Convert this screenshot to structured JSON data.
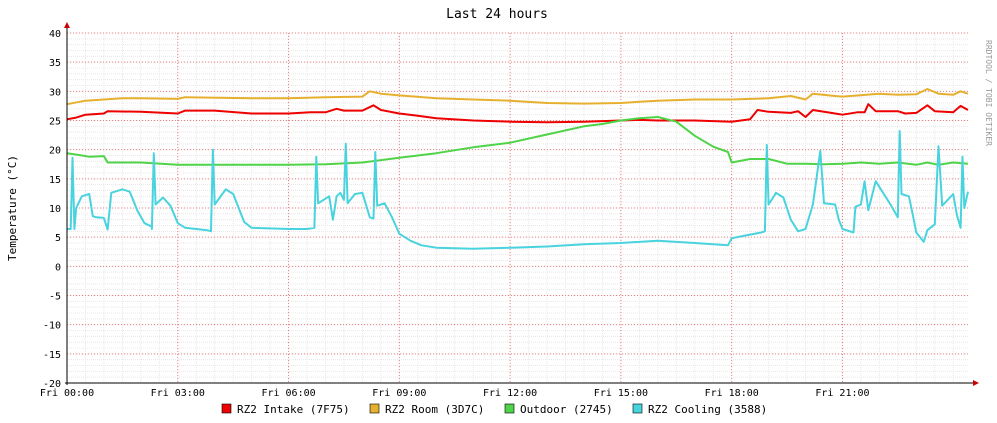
{
  "chart_data": {
    "type": "line",
    "title": "Last 24 hours",
    "ylabel": "Temperature (°C)",
    "xlabel": "",
    "watermark": "RRDTOOL / TOBI OETIKER",
    "ylim": [
      -20,
      40
    ],
    "yticks": [
      -20,
      -15,
      -10,
      -5,
      0,
      5,
      10,
      15,
      20,
      25,
      30,
      35,
      40
    ],
    "xlim": [
      0,
      24.4
    ],
    "xticks": [
      {
        "value": 0,
        "label": "Fri 00:00"
      },
      {
        "value": 3,
        "label": "Fri 03:00"
      },
      {
        "value": 6,
        "label": "Fri 06:00"
      },
      {
        "value": 9,
        "label": "Fri 09:00"
      },
      {
        "value": 12,
        "label": "Fri 12:00"
      },
      {
        "value": 15,
        "label": "Fri 15:00"
      },
      {
        "value": 18,
        "label": "Fri 18:00"
      },
      {
        "value": 21,
        "label": "Fri 21:00"
      }
    ],
    "grid": true,
    "legend_position": "bottom",
    "colors": {
      "background": "#ffffff",
      "major_grid": "#f08080",
      "minor_grid": "#e8e8e8",
      "axis": "#000000",
      "arrow": "#cc0000"
    },
    "series": [
      {
        "name": "RZ2 Intake (7F75)",
        "color": "#ee0000",
        "points": [
          [
            0,
            25.2
          ],
          [
            0.25,
            25.5
          ],
          [
            0.5,
            26.0
          ],
          [
            1.0,
            26.2
          ],
          [
            1.1,
            26.6
          ],
          [
            2.0,
            26.5
          ],
          [
            3.0,
            26.2
          ],
          [
            3.2,
            26.7
          ],
          [
            4.0,
            26.7
          ],
          [
            5.0,
            26.2
          ],
          [
            6.0,
            26.2
          ],
          [
            6.6,
            26.4
          ],
          [
            7.0,
            26.4
          ],
          [
            7.3,
            27.0
          ],
          [
            7.5,
            26.7
          ],
          [
            8.0,
            26.7
          ],
          [
            8.3,
            27.6
          ],
          [
            8.5,
            26.8
          ],
          [
            9.0,
            26.2
          ],
          [
            9.5,
            25.8
          ],
          [
            10.0,
            25.4
          ],
          [
            11.0,
            25.0
          ],
          [
            12.0,
            24.8
          ],
          [
            13.0,
            24.7
          ],
          [
            14.0,
            24.8
          ],
          [
            15.0,
            25.0
          ],
          [
            15.5,
            25.1
          ],
          [
            16.0,
            25.0
          ],
          [
            17.0,
            25.0
          ],
          [
            18.0,
            24.8
          ],
          [
            18.5,
            25.2
          ],
          [
            18.7,
            26.8
          ],
          [
            19.0,
            26.5
          ],
          [
            19.6,
            26.3
          ],
          [
            19.8,
            26.6
          ],
          [
            20.0,
            25.6
          ],
          [
            20.2,
            26.8
          ],
          [
            20.8,
            26.2
          ],
          [
            21.0,
            26.0
          ],
          [
            21.4,
            26.4
          ],
          [
            21.6,
            26.4
          ],
          [
            21.7,
            27.8
          ],
          [
            21.9,
            26.6
          ],
          [
            22.5,
            26.6
          ],
          [
            22.7,
            26.2
          ],
          [
            23.0,
            26.3
          ],
          [
            23.3,
            27.6
          ],
          [
            23.5,
            26.6
          ],
          [
            24.0,
            26.4
          ],
          [
            24.2,
            27.5
          ],
          [
            24.4,
            26.8
          ]
        ]
      },
      {
        "name": "RZ2 Room (3D7C)",
        "color": "#e6b02f",
        "points": [
          [
            0,
            27.8
          ],
          [
            0.5,
            28.4
          ],
          [
            1.0,
            28.6
          ],
          [
            1.5,
            28.8
          ],
          [
            2.0,
            28.8
          ],
          [
            3.0,
            28.7
          ],
          [
            3.2,
            29.0
          ],
          [
            5.0,
            28.8
          ],
          [
            6.0,
            28.8
          ],
          [
            7.0,
            29.0
          ],
          [
            8.0,
            29.1
          ],
          [
            8.2,
            30.0
          ],
          [
            8.5,
            29.6
          ],
          [
            9.0,
            29.3
          ],
          [
            10.0,
            28.8
          ],
          [
            11.0,
            28.6
          ],
          [
            12.0,
            28.4
          ],
          [
            13.0,
            28.0
          ],
          [
            14.0,
            27.9
          ],
          [
            15.0,
            28.0
          ],
          [
            15.5,
            28.2
          ],
          [
            16.0,
            28.4
          ],
          [
            17.0,
            28.6
          ],
          [
            18.0,
            28.6
          ],
          [
            19.0,
            28.8
          ],
          [
            19.6,
            29.2
          ],
          [
            20.0,
            28.6
          ],
          [
            20.2,
            29.6
          ],
          [
            20.8,
            29.2
          ],
          [
            21.0,
            29.1
          ],
          [
            22.0,
            29.6
          ],
          [
            22.5,
            29.4
          ],
          [
            23.0,
            29.5
          ],
          [
            23.3,
            30.4
          ],
          [
            23.6,
            29.6
          ],
          [
            24.0,
            29.4
          ],
          [
            24.2,
            30.0
          ],
          [
            24.4,
            29.6
          ]
        ]
      },
      {
        "name": "Outdoor (2745)",
        "color": "#4fd348",
        "points": [
          [
            0,
            19.4
          ],
          [
            0.3,
            19.1
          ],
          [
            0.6,
            18.8
          ],
          [
            1.0,
            18.9
          ],
          [
            1.1,
            17.8
          ],
          [
            2.0,
            17.8
          ],
          [
            3.0,
            17.4
          ],
          [
            4.0,
            17.4
          ],
          [
            5.0,
            17.4
          ],
          [
            6.0,
            17.4
          ],
          [
            7.0,
            17.5
          ],
          [
            8.0,
            17.8
          ],
          [
            9.0,
            18.6
          ],
          [
            10.0,
            19.4
          ],
          [
            11.0,
            20.4
          ],
          [
            12.0,
            21.2
          ],
          [
            13.0,
            22.6
          ],
          [
            14.0,
            24.0
          ],
          [
            14.5,
            24.4
          ],
          [
            15.0,
            25.0
          ],
          [
            15.5,
            25.4
          ],
          [
            16.0,
            25.6
          ],
          [
            16.5,
            24.8
          ],
          [
            17.0,
            22.4
          ],
          [
            17.5,
            20.5
          ],
          [
            17.9,
            19.6
          ],
          [
            18.0,
            17.8
          ],
          [
            18.5,
            18.4
          ],
          [
            19.0,
            18.4
          ],
          [
            19.5,
            17.6
          ],
          [
            20.0,
            17.6
          ],
          [
            20.5,
            17.5
          ],
          [
            21.0,
            17.6
          ],
          [
            21.5,
            17.8
          ],
          [
            22.0,
            17.6
          ],
          [
            22.5,
            17.8
          ],
          [
            23.0,
            17.4
          ],
          [
            23.3,
            17.8
          ],
          [
            23.6,
            17.4
          ],
          [
            24.0,
            17.8
          ],
          [
            24.4,
            17.6
          ]
        ]
      },
      {
        "name": "RZ2 Cooling (3588)",
        "color": "#49d3de",
        "points": [
          [
            0,
            6.4
          ],
          [
            0.1,
            6.4
          ],
          [
            0.15,
            18.6
          ],
          [
            0.2,
            6.4
          ],
          [
            0.25,
            10.0
          ],
          [
            0.4,
            12.0
          ],
          [
            0.6,
            12.4
          ],
          [
            0.7,
            8.6
          ],
          [
            0.8,
            8.4
          ],
          [
            1.0,
            8.3
          ],
          [
            1.1,
            6.3
          ],
          [
            1.2,
            12.6
          ],
          [
            1.5,
            13.2
          ],
          [
            1.7,
            12.8
          ],
          [
            1.9,
            9.6
          ],
          [
            2.1,
            7.4
          ],
          [
            2.3,
            6.8
          ],
          [
            2.3,
            6.4
          ],
          [
            2.35,
            19.4
          ],
          [
            2.4,
            10.6
          ],
          [
            2.6,
            11.8
          ],
          [
            2.8,
            10.4
          ],
          [
            3.0,
            7.4
          ],
          [
            3.2,
            6.6
          ],
          [
            3.8,
            6.2
          ],
          [
            3.9,
            6.0
          ],
          [
            3.95,
            20.0
          ],
          [
            4.0,
            10.6
          ],
          [
            4.3,
            13.2
          ],
          [
            4.5,
            12.4
          ],
          [
            4.8,
            7.6
          ],
          [
            5.0,
            6.6
          ],
          [
            6.0,
            6.4
          ],
          [
            6.5,
            6.4
          ],
          [
            6.7,
            6.6
          ],
          [
            6.75,
            18.8
          ],
          [
            6.8,
            10.8
          ],
          [
            7.1,
            12.0
          ],
          [
            7.2,
            8.0
          ],
          [
            7.3,
            12.0
          ],
          [
            7.4,
            12.6
          ],
          [
            7.5,
            11.4
          ],
          [
            7.55,
            21.0
          ],
          [
            7.6,
            10.8
          ],
          [
            7.8,
            12.4
          ],
          [
            8.0,
            12.6
          ],
          [
            8.2,
            8.4
          ],
          [
            8.3,
            8.2
          ],
          [
            8.35,
            19.6
          ],
          [
            8.4,
            10.4
          ],
          [
            8.6,
            10.8
          ],
          [
            8.8,
            8.4
          ],
          [
            9.0,
            5.6
          ],
          [
            9.3,
            4.4
          ],
          [
            9.6,
            3.6
          ],
          [
            10.0,
            3.2
          ],
          [
            11.0,
            3.0
          ],
          [
            12.0,
            3.2
          ],
          [
            13.0,
            3.4
          ],
          [
            14.0,
            3.8
          ],
          [
            15.0,
            4.0
          ],
          [
            16.0,
            4.4
          ],
          [
            17.0,
            4.0
          ],
          [
            17.9,
            3.6
          ],
          [
            18.0,
            4.8
          ],
          [
            18.3,
            5.2
          ],
          [
            18.8,
            5.8
          ],
          [
            18.9,
            6.0
          ],
          [
            18.95,
            20.8
          ],
          [
            19.0,
            10.6
          ],
          [
            19.2,
            12.6
          ],
          [
            19.4,
            11.8
          ],
          [
            19.6,
            8.0
          ],
          [
            19.8,
            6.0
          ],
          [
            20.0,
            6.4
          ],
          [
            20.2,
            10.6
          ],
          [
            20.4,
            19.8
          ],
          [
            20.5,
            10.8
          ],
          [
            20.8,
            10.6
          ],
          [
            20.9,
            8.0
          ],
          [
            21.0,
            6.4
          ],
          [
            21.3,
            5.8
          ],
          [
            21.35,
            10.2
          ],
          [
            21.5,
            10.6
          ],
          [
            21.6,
            14.6
          ],
          [
            21.7,
            9.6
          ],
          [
            21.9,
            14.6
          ],
          [
            22.2,
            11.6
          ],
          [
            22.3,
            10.6
          ],
          [
            22.5,
            8.4
          ],
          [
            22.55,
            23.2
          ],
          [
            22.6,
            12.4
          ],
          [
            22.8,
            12.0
          ],
          [
            22.9,
            9.0
          ],
          [
            23.0,
            5.8
          ],
          [
            23.2,
            4.2
          ],
          [
            23.3,
            6.2
          ],
          [
            23.5,
            7.2
          ],
          [
            23.6,
            20.6
          ],
          [
            23.7,
            10.4
          ],
          [
            24.0,
            12.4
          ],
          [
            24.1,
            8.8
          ],
          [
            24.2,
            6.6
          ],
          [
            24.25,
            18.8
          ],
          [
            24.3,
            10.0
          ],
          [
            24.4,
            12.8
          ]
        ]
      }
    ]
  }
}
